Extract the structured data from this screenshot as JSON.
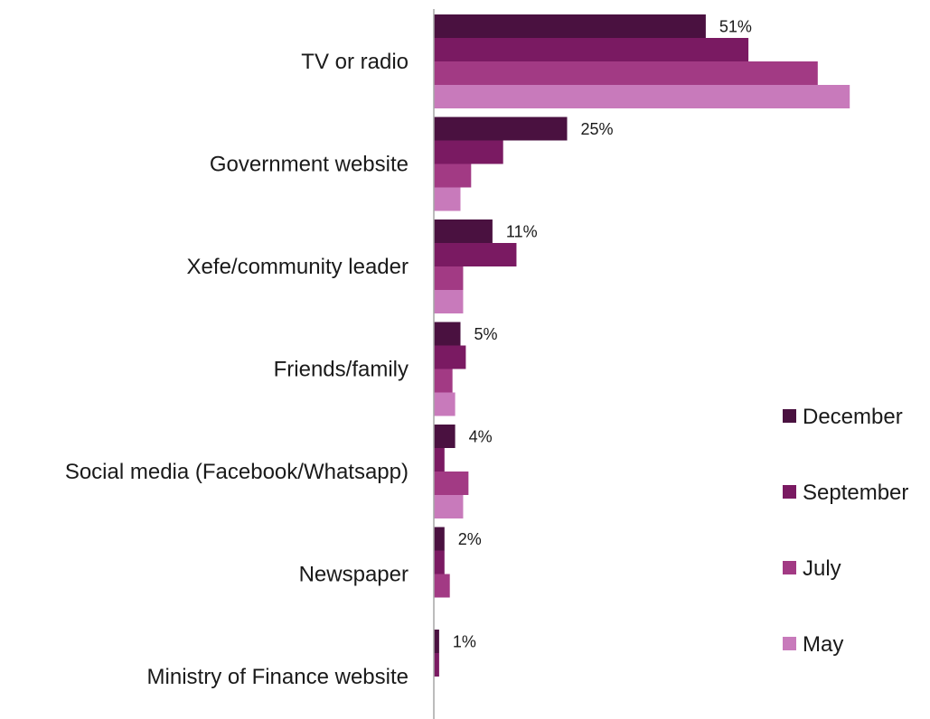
{
  "chart_data": {
    "type": "bar",
    "orientation": "horizontal",
    "categories": [
      "TV or radio",
      "Government website",
      "Xefe/community leader",
      "Friends/family",
      "Social media (Facebook/Whatsapp)",
      "Newspaper",
      "Ministry of Finance website"
    ],
    "series": [
      {
        "name": "December",
        "color": "#4a1140",
        "values": [
          51,
          25,
          11,
          5,
          4,
          2,
          1
        ]
      },
      {
        "name": "September",
        "color": "#7a1a62",
        "values": [
          59,
          13,
          15.5,
          6,
          2,
          2,
          1
        ]
      },
      {
        "name": "July",
        "color": "#a23a84",
        "values": [
          72,
          7,
          5.5,
          3.5,
          6.5,
          3,
          0
        ]
      },
      {
        "name": "May",
        "color": "#c87abb",
        "values": [
          78,
          5,
          5.5,
          4,
          5.5,
          0,
          0
        ]
      }
    ],
    "data_labels": [
      "51%",
      "25%",
      "11%",
      "5%",
      "4%",
      "2%",
      "1%"
    ],
    "xlim": [
      0,
      80
    ],
    "grid": false,
    "legend_position": "right"
  }
}
